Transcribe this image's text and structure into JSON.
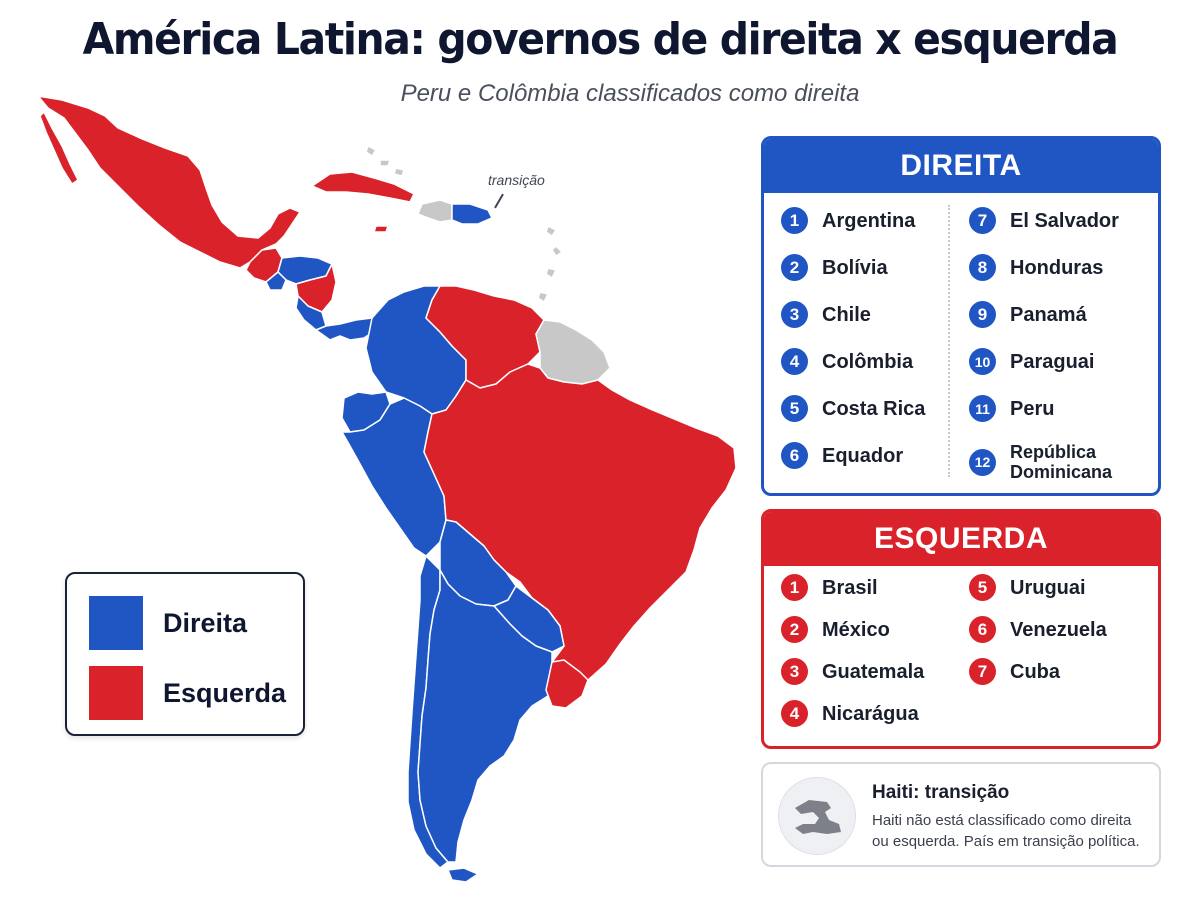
{
  "title": "América Latina: governos de direita x esquerda",
  "subtitle": "Peru e Colômbia classificados como direita",
  "colors": {
    "direita": "#1f56c4",
    "esquerda": "#d9222a",
    "transicao": "#c8c8c8"
  },
  "map": {
    "transition_label": "transição",
    "regions": {
      "mexico": "esquerda",
      "guatemala": "esquerda",
      "el_salvador": "direita",
      "honduras": "direita",
      "nicaragua": "esquerda",
      "costa_rica": "direita",
      "panama": "direita",
      "cuba": "esquerda",
      "haiti": "transicao",
      "republica_dominicana": "direita",
      "colombia": "direita",
      "venezuela": "esquerda",
      "guianas": "transicao",
      "equador": "direita",
      "peru": "direita",
      "brasil": "esquerda",
      "bolivia": "direita",
      "paraguai": "direita",
      "chile": "direita",
      "argentina": "direita",
      "uruguai": "esquerda"
    }
  },
  "legend": {
    "direita": "Direita",
    "esquerda": "Esquerda"
  },
  "direita": {
    "header": "DIREITA",
    "items": [
      {
        "num": "1",
        "name": "Argentina"
      },
      {
        "num": "2",
        "name": "Bolívia"
      },
      {
        "num": "3",
        "name": "Chile"
      },
      {
        "num": "4",
        "name": "Colômbia"
      },
      {
        "num": "5",
        "name": "Costa Rica"
      },
      {
        "num": "6",
        "name": "Equador"
      },
      {
        "num": "7",
        "name": "El Salvador"
      },
      {
        "num": "8",
        "name": "Honduras"
      },
      {
        "num": "9",
        "name": "Panamá"
      },
      {
        "num": "10",
        "name": "Paraguai"
      },
      {
        "num": "11",
        "name": "Peru"
      },
      {
        "num": "12",
        "name": "República Dominicana"
      }
    ]
  },
  "esquerda": {
    "header": "ESQUERDA",
    "items": [
      {
        "num": "1",
        "name": "Brasil"
      },
      {
        "num": "2",
        "name": "México"
      },
      {
        "num": "3",
        "name": "Guatemala"
      },
      {
        "num": "4",
        "name": "Nicarágua"
      },
      {
        "num": "5",
        "name": "Uruguai"
      },
      {
        "num": "6",
        "name": "Venezuela"
      },
      {
        "num": "7",
        "name": "Cuba"
      }
    ]
  },
  "haiti": {
    "title": "Haiti: transição",
    "description": "Haiti não está classificado como direita ou esquerda. País em transição política."
  }
}
